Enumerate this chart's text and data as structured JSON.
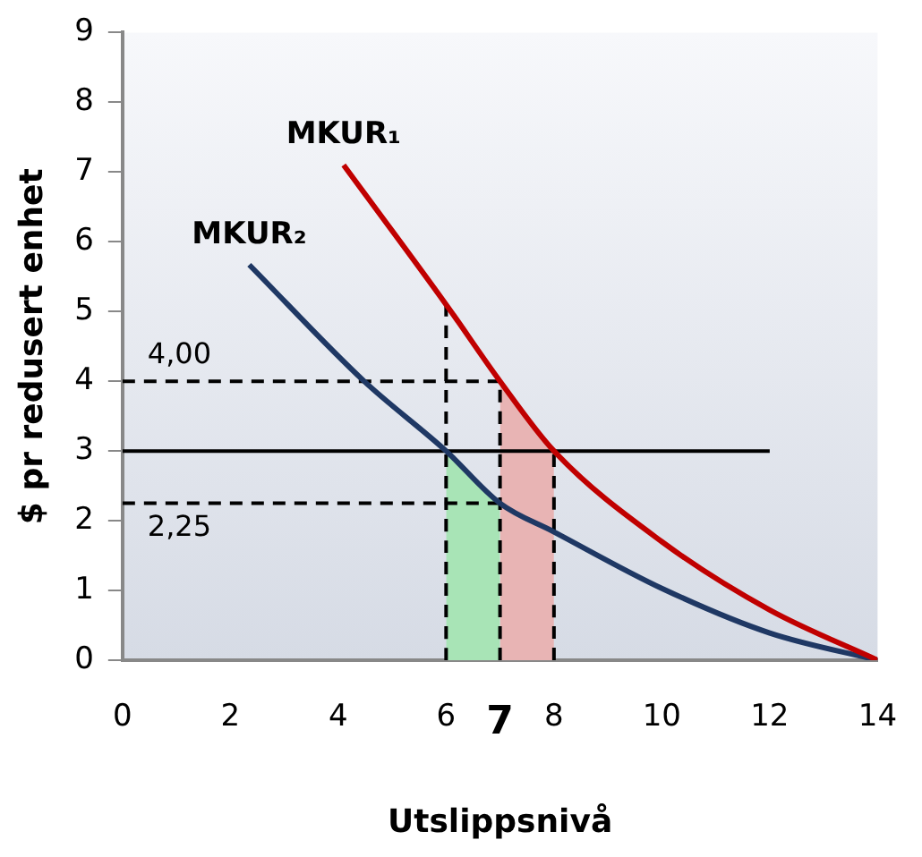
{
  "chart_data": {
    "type": "line",
    "xlabel": "Utslippsnivå",
    "ylabel": "$ pr redusert enhet",
    "xlim": [
      0,
      14
    ],
    "ylim": [
      0,
      9
    ],
    "xticks": [
      0,
      2,
      4,
      6,
      {
        "value": 7,
        "label": "7"
      },
      8,
      10,
      12,
      14
    ],
    "yticks": [
      0,
      1,
      2,
      3,
      4,
      5,
      6,
      7,
      8,
      9
    ],
    "grid": false,
    "legend": false,
    "marker": "none",
    "series": [
      {
        "type": "area",
        "color": "#a8e4b6",
        "x": [
          6,
          7
        ],
        "values": [
          3,
          2.25
        ]
      },
      {
        "type": "area",
        "color": "#e8b4b4",
        "x": [
          7,
          8
        ],
        "values": [
          4,
          3
        ]
      },
      {
        "name": "MKUR₁",
        "color": "#c00000",
        "x": [
          4.1,
          6,
          7,
          8,
          10,
          12,
          14
        ],
        "values": [
          7.1,
          5.1,
          4,
          3,
          1.7,
          0.72,
          0
        ]
      },
      {
        "name": "MKUR₂",
        "color": "#1f3864",
        "x": [
          2.35,
          4.48,
          6,
          7,
          8,
          10,
          12,
          14
        ],
        "values": [
          5.67,
          4,
          3,
          2.25,
          1.84,
          1.03,
          0.39,
          0
        ]
      },
      {
        "color": "#000000",
        "x": [
          0,
          12
        ],
        "values": [
          3,
          3
        ]
      },
      {
        "color": "#000000",
        "line_style": "dashed",
        "x": [
          0,
          7
        ],
        "values": [
          4,
          4
        ]
      },
      {
        "color": "#000000",
        "line_style": "dashed",
        "x": [
          0,
          7
        ],
        "values": [
          2.25,
          2.25
        ]
      },
      {
        "color": "#000000",
        "line_style": "dashed",
        "x": [
          6,
          6
        ],
        "values": [
          0,
          5.1
        ]
      },
      {
        "color": "#000000",
        "line_style": "dashed",
        "x": [
          7,
          7
        ],
        "values": [
          0,
          4
        ]
      },
      {
        "color": "#000000",
        "line_style": "dashed",
        "x": [
          8,
          8
        ],
        "values": [
          0,
          3
        ]
      }
    ],
    "annotations": [
      {
        "text": "4,00",
        "x": 0,
        "y": 4
      },
      {
        "text": "2,25",
        "x": 0,
        "y": 2.25
      }
    ]
  }
}
